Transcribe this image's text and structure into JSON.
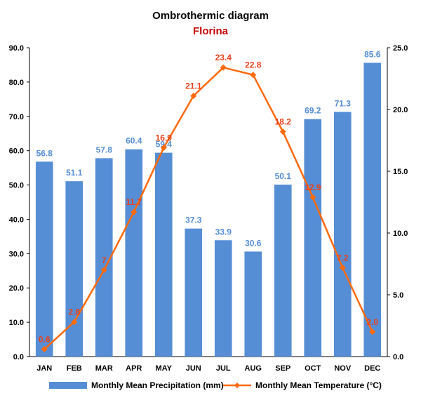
{
  "chart_data": {
    "type": "bar",
    "title": "Ombrothermic diagram",
    "subtitle": "Florina",
    "categories": [
      "JAN",
      "FEB",
      "MAR",
      "APR",
      "MAY",
      "JUN",
      "JUL",
      "AUG",
      "SEP",
      "OCT",
      "NOV",
      "DEC"
    ],
    "series": [
      {
        "name": "Monthly Mean Precipitation (mm)",
        "type": "bar",
        "axis": "left",
        "values": [
          56.8,
          51.1,
          57.8,
          60.4,
          59.4,
          37.3,
          33.9,
          30.6,
          50.1,
          69.2,
          71.3,
          85.6
        ],
        "labels": [
          "56.8",
          "51.1",
          "57.8",
          "60.4",
          "59.4",
          "37.3",
          "33.9",
          "30.6",
          "50.1",
          "69.2",
          "71.3",
          "85.6"
        ]
      },
      {
        "name": "Monthly Mean Temperature (°C)",
        "type": "line",
        "axis": "right",
        "values": [
          0.6,
          2.8,
          7.0,
          11.7,
          16.9,
          21.1,
          23.4,
          22.8,
          18.2,
          12.9,
          7.2,
          2.0
        ],
        "labels": [
          "0.6",
          "2.8",
          "7",
          "11.7",
          "16.9",
          "21.1",
          "23.4",
          "22.8",
          "18.2",
          "12.9",
          "7.2",
          "2.0"
        ]
      }
    ],
    "y_left": {
      "lim": [
        0,
        90
      ],
      "ticks": [
        "0.0",
        "10.0",
        "20.0",
        "30.0",
        "40.0",
        "50.0",
        "60.0",
        "70.0",
        "80.0",
        "90.0"
      ]
    },
    "y_right": {
      "lim": [
        0,
        25
      ],
      "ticks": [
        "0.0",
        "5.0",
        "10.0",
        "15.0",
        "20.0",
        "25.0"
      ]
    },
    "grid": false,
    "legend_position": "bottom",
    "colors": {
      "bar": "#558ed5",
      "bar_label": "#558ed5",
      "line": "#ff6a0d",
      "line_label": "#e8401c",
      "subtitle": "#c00000"
    }
  }
}
